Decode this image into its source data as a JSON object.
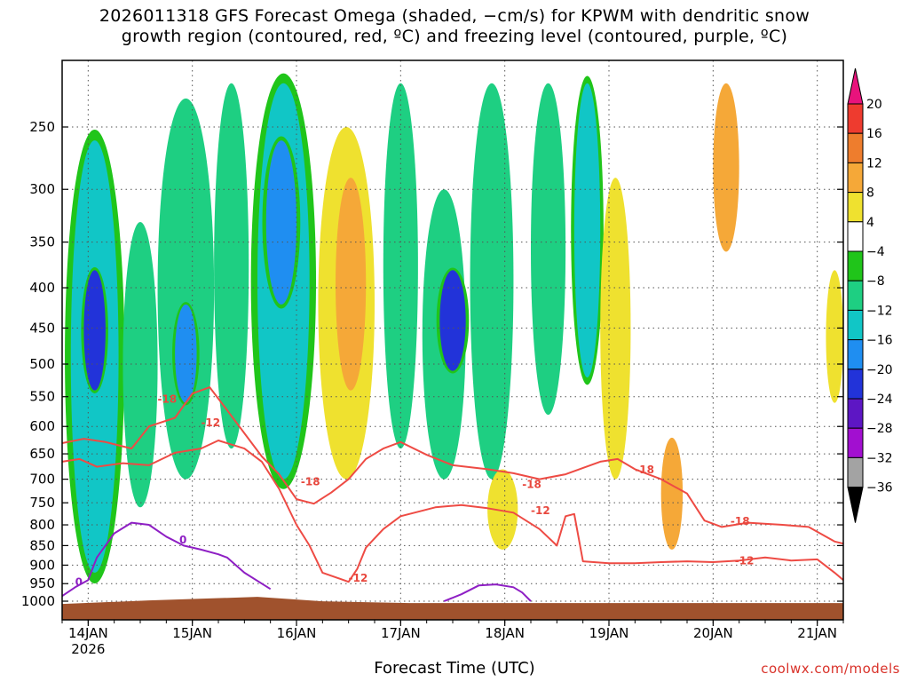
{
  "title": {
    "line1": "2026011318 GFS Forecast Omega (shaded, −cm/s) for KPWM with dendritic snow",
    "line2": "growth region (contoured, red, ºC) and freezing level (contoured, purple, ºC)"
  },
  "credit": "coolwx.com/models",
  "chart_data": {
    "type": "time-height-contour",
    "title": "2026011318 GFS Forecast Omega (shaded, −cm/s) for KPWM with dendritic snow growth region (contoured, red, ºC) and freezing level (contoured, purple, ºC)",
    "xlabel": "Forecast Time (UTC)",
    "ylabel": "",
    "x_ticks": [
      {
        "label": "14JAN",
        "sublabel": "2026",
        "hours": 6
      },
      {
        "label": "15JAN",
        "hours": 30
      },
      {
        "label": "16JAN",
        "hours": 54
      },
      {
        "label": "17JAN",
        "hours": 78
      },
      {
        "label": "18JAN",
        "hours": 102
      },
      {
        "label": "19JAN",
        "hours": 126
      },
      {
        "label": "20JAN",
        "hours": 150
      },
      {
        "label": "21JAN",
        "hours": 174
      }
    ],
    "xlim_hours": [
      0,
      180
    ],
    "y_ticks_hpa": [
      250,
      300,
      350,
      400,
      450,
      500,
      550,
      600,
      650,
      700,
      750,
      800,
      850,
      900,
      950,
      1000
    ],
    "ylim_hpa": [
      200,
      1020
    ],
    "y_axis": "pressure (inverted, log)",
    "colorbar": {
      "ticks": [
        "20",
        "16",
        "12",
        "8",
        "4",
        "−4",
        "−8",
        "−12",
        "−16",
        "−20",
        "−24",
        "−28",
        "−32",
        "−36"
      ],
      "bins": [
        {
          "range": ">20",
          "color": "#e8137c"
        },
        {
          "range": "16 to 20",
          "color": "#ee3b2f"
        },
        {
          "range": "12 to 16",
          "color": "#ee7d2d"
        },
        {
          "range": "8 to 12",
          "color": "#f5a838"
        },
        {
          "range": "4 to 8",
          "color": "#efe12f"
        },
        {
          "range": "-4 to 4",
          "color": "#ffffff"
        },
        {
          "range": "-8 to -4",
          "color": "#20c51a"
        },
        {
          "range": "-12 to -8",
          "color": "#1ecf82"
        },
        {
          "range": "-16 to -12",
          "color": "#11c6c6"
        },
        {
          "range": "-20 to -16",
          "color": "#1f8ef1"
        },
        {
          "range": "-24 to -20",
          "color": "#2233d9"
        },
        {
          "range": "-28 to -24",
          "color": "#5d16c4"
        },
        {
          "range": "-32 to -28",
          "color": "#a20fd0"
        },
        {
          "range": "-36 to -32",
          "color": "#a3a3a3"
        },
        {
          "range": "<-36",
          "color": "#000000"
        }
      ]
    },
    "shaded_features": [
      {
        "hours": [
          2,
          13
        ],
        "hpa": [
          260,
          920
        ],
        "value": -12
      },
      {
        "hours": [
          5,
          10
        ],
        "hpa": [
          380,
          540
        ],
        "value": -22
      },
      {
        "hours": [
          14,
          22
        ],
        "hpa": [
          330,
          760
        ],
        "value": -8
      },
      {
        "hours": [
          22,
          35
        ],
        "hpa": [
          230,
          700
        ],
        "value": -10
      },
      {
        "hours": [
          26,
          31
        ],
        "hpa": [
          420,
          560
        ],
        "value": -17
      },
      {
        "hours": [
          35,
          43
        ],
        "hpa": [
          220,
          640
        ],
        "value": -8
      },
      {
        "hours": [
          45,
          57
        ],
        "hpa": [
          220,
          700
        ],
        "value": -14
      },
      {
        "hours": [
          47,
          54
        ],
        "hpa": [
          260,
          420
        ],
        "value": -17
      },
      {
        "hours": [
          59,
          72
        ],
        "hpa": [
          250,
          700
        ],
        "value": 6
      },
      {
        "hours": [
          63,
          70
        ],
        "hpa": [
          290,
          540
        ],
        "value": 10
      },
      {
        "hours": [
          74,
          82
        ],
        "hpa": [
          220,
          640
        ],
        "value": -8
      },
      {
        "hours": [
          83,
          93
        ],
        "hpa": [
          300,
          700
        ],
        "value": -10
      },
      {
        "hours": [
          87,
          93
        ],
        "hpa": [
          380,
          510
        ],
        "value": -22
      },
      {
        "hours": [
          94,
          104
        ],
        "hpa": [
          220,
          700
        ],
        "value": -9
      },
      {
        "hours": [
          98,
          105
        ],
        "hpa": [
          680,
          860
        ],
        "value": 7
      },
      {
        "hours": [
          108,
          116
        ],
        "hpa": [
          220,
          580
        ],
        "value": -8
      },
      {
        "hours": [
          118,
          124
        ],
        "hpa": [
          220,
          520
        ],
        "value": -12
      },
      {
        "hours": [
          124,
          131
        ],
        "hpa": [
          290,
          700
        ],
        "value": 6
      },
      {
        "hours": [
          138,
          143
        ],
        "hpa": [
          620,
          860
        ],
        "value": 9
      },
      {
        "hours": [
          150,
          156
        ],
        "hpa": [
          220,
          360
        ],
        "value": 9
      },
      {
        "hours": [
          176,
          180
        ],
        "hpa": [
          380,
          560
        ],
        "value": 5
      }
    ],
    "dgz_contours": [
      {
        "level": -18,
        "color": "#ee4b44",
        "points": [
          [
            0,
            630
          ],
          [
            5,
            622
          ],
          [
            10,
            628
          ],
          [
            16,
            640
          ],
          [
            20,
            600
          ],
          [
            26,
            585
          ],
          [
            30,
            545
          ],
          [
            34,
            535
          ],
          [
            38,
            572
          ],
          [
            42,
            612
          ],
          [
            46,
            655
          ],
          [
            50,
            690
          ],
          [
            54,
            742
          ],
          [
            58,
            752
          ],
          [
            62,
            728
          ],
          [
            66,
            700
          ],
          [
            70,
            660
          ],
          [
            74,
            640
          ],
          [
            78,
            628
          ],
          [
            84,
            652
          ],
          [
            90,
            672
          ],
          [
            98,
            680
          ],
          [
            104,
            688
          ],
          [
            110,
            700
          ],
          [
            116,
            690
          ],
          [
            124,
            665
          ],
          [
            128,
            660
          ],
          [
            132,
            680
          ],
          [
            138,
            700
          ],
          [
            144,
            730
          ],
          [
            148,
            790
          ],
          [
            152,
            805
          ],
          [
            158,
            795
          ],
          [
            166,
            800
          ],
          [
            172,
            805
          ],
          [
            178,
            840
          ],
          [
            180,
            845
          ]
        ]
      },
      {
        "level": -12,
        "color": "#ee4b44",
        "points": [
          [
            0,
            665
          ],
          [
            4,
            660
          ],
          [
            8,
            675
          ],
          [
            14,
            668
          ],
          [
            20,
            672
          ],
          [
            26,
            648
          ],
          [
            32,
            640
          ],
          [
            36,
            625
          ],
          [
            42,
            640
          ],
          [
            46,
            665
          ],
          [
            50,
            720
          ],
          [
            54,
            800
          ],
          [
            57,
            850
          ],
          [
            60,
            920
          ],
          [
            66,
            945
          ],
          [
            68,
            910
          ],
          [
            70,
            855
          ],
          [
            74,
            810
          ],
          [
            78,
            780
          ],
          [
            82,
            770
          ],
          [
            86,
            760
          ],
          [
            92,
            755
          ],
          [
            98,
            762
          ],
          [
            104,
            772
          ],
          [
            110,
            810
          ],
          [
            114,
            850
          ],
          [
            116,
            780
          ],
          [
            118,
            775
          ],
          [
            120,
            890
          ],
          [
            126,
            895
          ],
          [
            132,
            895
          ],
          [
            138,
            892
          ],
          [
            144,
            890
          ],
          [
            150,
            892
          ],
          [
            156,
            888
          ],
          [
            162,
            880
          ],
          [
            168,
            888
          ],
          [
            174,
            885
          ],
          [
            178,
            920
          ],
          [
            180,
            940
          ]
        ]
      },
      {
        "level": 0,
        "color": "#8e1fc4",
        "points": [
          [
            0,
            985
          ],
          [
            3,
            960
          ],
          [
            6,
            940
          ],
          [
            8,
            880
          ],
          [
            12,
            820
          ],
          [
            16,
            795
          ],
          [
            20,
            800
          ],
          [
            24,
            828
          ],
          [
            28,
            850
          ],
          [
            32,
            860
          ],
          [
            36,
            872
          ],
          [
            38,
            880
          ],
          [
            42,
            920
          ],
          [
            46,
            950
          ],
          [
            48,
            965
          ]
        ]
      },
      {
        "level": 0,
        "color": "#8e1fc4",
        "points": [
          [
            88,
            1000
          ],
          [
            92,
            980
          ],
          [
            96,
            955
          ],
          [
            100,
            952
          ],
          [
            104,
            960
          ],
          [
            106,
            975
          ],
          [
            108,
            1000
          ]
        ]
      }
    ],
    "contour_labels": [
      {
        "text": "-18",
        "hours": 22,
        "hpa": 560,
        "color": "red"
      },
      {
        "text": "-12",
        "hours": 32,
        "hpa": 600,
        "color": "red"
      },
      {
        "text": "-18",
        "hours": 55,
        "hpa": 713,
        "color": "red"
      },
      {
        "text": "-12",
        "hours": 66,
        "hpa": 945,
        "color": "red"
      },
      {
        "text": "-18",
        "hours": 106,
        "hpa": 718,
        "color": "red"
      },
      {
        "text": "-12",
        "hours": 108,
        "hpa": 775,
        "color": "red"
      },
      {
        "text": "-18",
        "hours": 132,
        "hpa": 688,
        "color": "red"
      },
      {
        "text": "-18",
        "hours": 154,
        "hpa": 800,
        "color": "red"
      },
      {
        "text": "-12",
        "hours": 155,
        "hpa": 898,
        "color": "red"
      },
      {
        "text": "0",
        "hours": 3,
        "hpa": 955,
        "color": "purple"
      },
      {
        "text": "0",
        "hours": 27,
        "hpa": 845,
        "color": "purple"
      }
    ],
    "terrain": {
      "label": "surface",
      "color": "#a0522d",
      "top_hpa": 1003
    }
  }
}
